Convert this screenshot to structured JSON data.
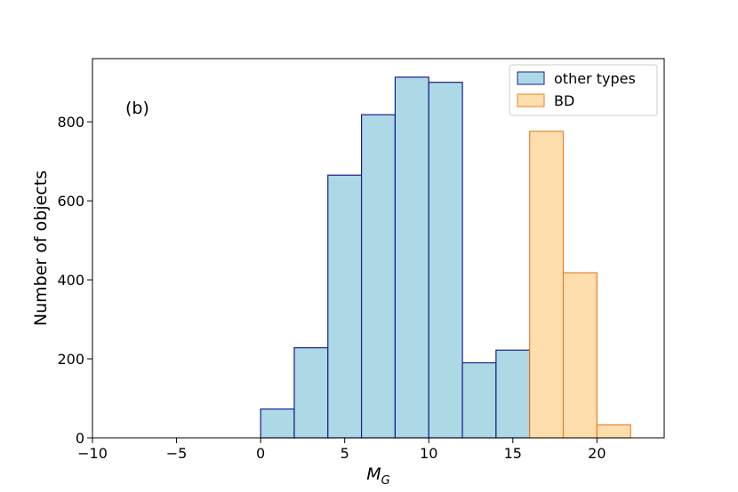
{
  "chart_data": {
    "type": "bar",
    "panel_label": "(b)",
    "xlabel_main": "M",
    "xlabel_sub": "G",
    "ylabel": "Number of objects",
    "xlim": [
      -10,
      24
    ],
    "ylim": [
      0,
      960
    ],
    "x_ticks": [
      {
        "value": -10,
        "label": "−10"
      },
      {
        "value": -5,
        "label": "−5"
      },
      {
        "value": 0,
        "label": "0"
      },
      {
        "value": 5,
        "label": "5"
      },
      {
        "value": 10,
        "label": "10"
      },
      {
        "value": 15,
        "label": "15"
      },
      {
        "value": 20,
        "label": "20"
      }
    ],
    "y_ticks": [
      {
        "value": 0,
        "label": "0"
      },
      {
        "value": 200,
        "label": "200"
      },
      {
        "value": 400,
        "label": "400"
      },
      {
        "value": 600,
        "label": "600"
      },
      {
        "value": 800,
        "label": "800"
      }
    ],
    "grid": false,
    "legend_position": "top-right",
    "series": [
      {
        "name": "other types",
        "fill": "#add8e6",
        "stroke": "#1c1c8c",
        "bins": [
          {
            "x0": 0,
            "x1": 2,
            "count": 73
          },
          {
            "x0": 2,
            "x1": 4,
            "count": 228
          },
          {
            "x0": 4,
            "x1": 6,
            "count": 665
          },
          {
            "x0": 6,
            "x1": 8,
            "count": 818
          },
          {
            "x0": 8,
            "x1": 10,
            "count": 913
          },
          {
            "x0": 10,
            "x1": 12,
            "count": 900
          },
          {
            "x0": 12,
            "x1": 14,
            "count": 190
          },
          {
            "x0": 14,
            "x1": 16,
            "count": 222
          }
        ]
      },
      {
        "name": "BD",
        "fill": "#ffdead",
        "stroke": "#e8822c",
        "bins": [
          {
            "x0": 16,
            "x1": 18,
            "count": 776
          },
          {
            "x0": 18,
            "x1": 20,
            "count": 418
          },
          {
            "x0": 20,
            "x1": 22,
            "count": 33
          }
        ]
      }
    ]
  }
}
